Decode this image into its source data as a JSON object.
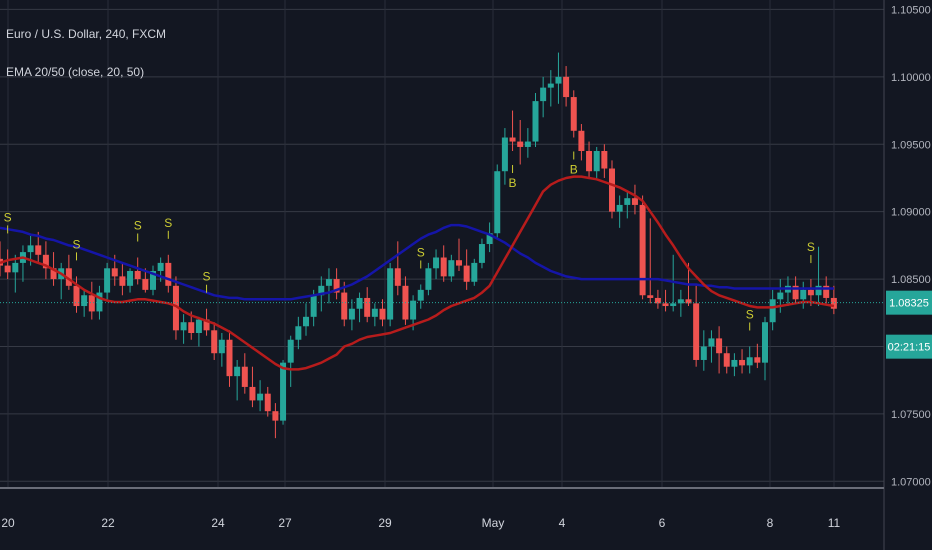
{
  "legend": {
    "symbol": "Euro / U.S. Dollar, 240, FXCM",
    "indicator": "EMA 20/50 (close, 20, 50)"
  },
  "colors": {
    "background": "#131722",
    "grid": "#363a45",
    "up": "#26a69a",
    "down": "#ef5350",
    "ema_fast": "#b71c1c",
    "ema_slow": "#1515a8",
    "signal": "#cccc33",
    "price_line": "#26a69a"
  },
  "chart_data": {
    "type": "candlestick",
    "title": "Euro / U.S. Dollar, 240, FXCM",
    "ylim": [
      1.0698,
      1.1057
    ],
    "y_ticks": [
      "1.10500",
      "1.10000",
      "1.09500",
      "1.09000",
      "1.08500",
      "1.08000",
      "1.07500",
      "1.07000"
    ],
    "x_ticks": [
      "20",
      "22",
      "24",
      "27",
      "29",
      "May",
      "4",
      "6",
      "8",
      "11"
    ],
    "current_price": "1.08325",
    "countdown": "02:21:15",
    "candles": [
      [
        1.0865,
        1.0878,
        1.0852,
        1.086
      ],
      [
        1.086,
        1.0872,
        1.085,
        1.0855
      ],
      [
        1.0855,
        1.0868,
        1.084,
        1.0862
      ],
      [
        1.0862,
        1.0875,
        1.0848,
        1.087
      ],
      [
        1.087,
        1.0882,
        1.086,
        1.0875
      ],
      [
        1.0875,
        1.0885,
        1.0862,
        1.0868
      ],
      [
        1.0868,
        1.0878,
        1.085,
        1.0858
      ],
      [
        1.0858,
        1.087,
        1.0845,
        1.085
      ],
      [
        1.085,
        1.0862,
        1.0835,
        1.0858
      ],
      [
        1.0858,
        1.0868,
        1.0842,
        1.0845
      ],
      [
        1.0845,
        1.0852,
        1.0825,
        1.083
      ],
      [
        1.083,
        1.0842,
        1.0822,
        1.0838
      ],
      [
        1.0838,
        1.0848,
        1.082,
        1.0826
      ],
      [
        1.0826,
        1.0845,
        1.082,
        1.084
      ],
      [
        1.084,
        1.0862,
        1.0835,
        1.0858
      ],
      [
        1.0858,
        1.0868,
        1.0845,
        1.0852
      ],
      [
        1.0852,
        1.0862,
        1.0838,
        1.0845
      ],
      [
        1.0845,
        1.0858,
        1.084,
        1.0856
      ],
      [
        1.0856,
        1.0866,
        1.0846,
        1.085
      ],
      [
        1.085,
        1.0858,
        1.084,
        1.0842
      ],
      [
        1.0842,
        1.086,
        1.0838,
        1.0856
      ],
      [
        1.0856,
        1.0866,
        1.0848,
        1.0862
      ],
      [
        1.0862,
        1.0868,
        1.084,
        1.0845
      ],
      [
        1.0845,
        1.0852,
        1.0805,
        1.0812
      ],
      [
        1.0812,
        1.0824,
        1.0802,
        1.0818
      ],
      [
        1.0818,
        1.0826,
        1.0805,
        1.081
      ],
      [
        1.081,
        1.0822,
        1.08,
        1.082
      ],
      [
        1.082,
        1.0828,
        1.0808,
        1.0812
      ],
      [
        1.0812,
        1.0818,
        1.079,
        1.0795
      ],
      [
        1.0795,
        1.081,
        1.0785,
        1.0805
      ],
      [
        1.0805,
        1.0812,
        1.077,
        1.0778
      ],
      [
        1.0778,
        1.079,
        1.076,
        1.0785
      ],
      [
        1.0785,
        1.0795,
        1.0765,
        1.077
      ],
      [
        1.077,
        1.0785,
        1.0755,
        1.076
      ],
      [
        1.076,
        1.0775,
        1.0752,
        1.0765
      ],
      [
        1.0765,
        1.077,
        1.0748,
        1.0752
      ],
      [
        1.0752,
        1.0758,
        1.0732,
        1.0745
      ],
      [
        1.0745,
        1.079,
        1.0742,
        1.0788
      ],
      [
        1.0788,
        1.0808,
        1.077,
        1.0805
      ],
      [
        1.0805,
        1.0822,
        1.0798,
        1.0815
      ],
      [
        1.0815,
        1.0832,
        1.0808,
        1.0822
      ],
      [
        1.0822,
        1.0842,
        1.0815,
        1.0838
      ],
      [
        1.0838,
        1.0852,
        1.0826,
        1.0845
      ],
      [
        1.0845,
        1.0858,
        1.0832,
        1.085
      ],
      [
        1.085,
        1.0858,
        1.0835,
        1.084
      ],
      [
        1.084,
        1.0848,
        1.0815,
        1.082
      ],
      [
        1.082,
        1.0835,
        1.0812,
        1.0828
      ],
      [
        1.0828,
        1.084,
        1.0818,
        1.0836
      ],
      [
        1.0836,
        1.0844,
        1.0818,
        1.0822
      ],
      [
        1.0822,
        1.0832,
        1.0815,
        1.0828
      ],
      [
        1.0828,
        1.0835,
        1.0815,
        1.082
      ],
      [
        1.082,
        1.0862,
        1.0815,
        1.0858
      ],
      [
        1.0858,
        1.0878,
        1.0838,
        1.0845
      ],
      [
        1.0845,
        1.0852,
        1.0816,
        1.082
      ],
      [
        1.082,
        1.0838,
        1.0812,
        1.0834
      ],
      [
        1.0834,
        1.0846,
        1.0828,
        1.0842
      ],
      [
        1.0842,
        1.0862,
        1.0838,
        1.0858
      ],
      [
        1.0858,
        1.0872,
        1.085,
        1.0866
      ],
      [
        1.0866,
        1.0875,
        1.0848,
        1.0852
      ],
      [
        1.0852,
        1.0868,
        1.0848,
        1.0864
      ],
      [
        1.0864,
        1.088,
        1.0856,
        1.086
      ],
      [
        1.086,
        1.0872,
        1.0842,
        1.0848
      ],
      [
        1.0848,
        1.0865,
        1.0845,
        1.0862
      ],
      [
        1.0862,
        1.088,
        1.0858,
        1.0876
      ],
      [
        1.0876,
        1.0892,
        1.087,
        1.0884
      ],
      [
        1.0884,
        1.0935,
        1.088,
        1.093
      ],
      [
        1.093,
        1.0962,
        1.092,
        1.0955
      ],
      [
        1.0955,
        1.0975,
        1.0945,
        1.0952
      ],
      [
        1.0952,
        1.0968,
        1.0935,
        1.0948
      ],
      [
        1.0948,
        1.0962,
        1.094,
        1.0952
      ],
      [
        1.0952,
        1.0988,
        1.0948,
        1.0982
      ],
      [
        1.0982,
        1.1,
        1.097,
        1.0992
      ],
      [
        1.0992,
        1.1005,
        1.0978,
        1.0995
      ],
      [
        1.0995,
        1.1018,
        1.098,
        1.1
      ],
      [
        1.1,
        1.1008,
        1.0978,
        1.0985
      ],
      [
        1.0985,
        1.099,
        1.0955,
        1.096
      ],
      [
        1.096,
        1.0965,
        1.0938,
        1.0945
      ],
      [
        1.0945,
        1.0952,
        1.0925,
        1.093
      ],
      [
        1.093,
        1.0948,
        1.0925,
        1.0945
      ],
      [
        1.0945,
        1.095,
        1.0925,
        1.0932
      ],
      [
        1.0932,
        1.0938,
        1.0895,
        1.09
      ],
      [
        1.09,
        1.0912,
        1.0888,
        1.0905
      ],
      [
        1.0905,
        1.0915,
        1.0895,
        1.091
      ],
      [
        1.091,
        1.092,
        1.0898,
        1.0905
      ],
      [
        1.0905,
        1.0912,
        1.0835,
        1.0838
      ],
      [
        1.0838,
        1.0895,
        1.0832,
        1.0836
      ],
      [
        1.0836,
        1.0842,
        1.0828,
        1.0832
      ],
      [
        1.0832,
        1.0842,
        1.0826,
        1.083
      ],
      [
        1.083,
        1.0868,
        1.0826,
        1.0832
      ],
      [
        1.0832,
        1.0842,
        1.0822,
        1.0835
      ],
      [
        1.0835,
        1.0862,
        1.083,
        1.0832
      ],
      [
        1.0832,
        1.0845,
        1.0785,
        1.079
      ],
      [
        1.079,
        1.0812,
        1.0782,
        1.08
      ],
      [
        1.08,
        1.0812,
        1.0788,
        1.0806
      ],
      [
        1.0806,
        1.0815,
        1.078,
        1.0795
      ],
      [
        1.0795,
        1.08,
        1.078,
        1.0785
      ],
      [
        1.0785,
        1.0795,
        1.0778,
        1.079
      ],
      [
        1.079,
        1.0798,
        1.078,
        1.0786
      ],
      [
        1.0786,
        1.08,
        1.078,
        1.0792
      ],
      [
        1.0792,
        1.0802,
        1.0784,
        1.0788
      ],
      [
        1.0788,
        1.0822,
        1.0775,
        1.0818
      ],
      [
        1.0818,
        1.0842,
        1.0812,
        1.0835
      ],
      [
        1.0835,
        1.085,
        1.0825,
        1.084
      ],
      [
        1.084,
        1.0852,
        1.083,
        1.0845
      ],
      [
        1.0845,
        1.0852,
        1.0832,
        1.0835
      ],
      [
        1.0835,
        1.0848,
        1.0828,
        1.0842
      ],
      [
        1.0842,
        1.085,
        1.083,
        1.0838
      ],
      [
        1.0838,
        1.0874,
        1.083,
        1.0845
      ],
      [
        1.0845,
        1.0852,
        1.0832,
        1.0836
      ],
      [
        1.0836,
        1.0845,
        1.0824,
        1.0828
      ]
    ],
    "ema20": [
      1.0862,
      1.0864,
      1.0865,
      1.0866,
      1.0864,
      1.0862,
      1.086,
      1.0857,
      1.0854,
      1.085,
      1.0846,
      1.0842,
      1.0839,
      1.0836,
      1.0834,
      1.0833,
      1.0833,
      1.0834,
      1.0835,
      1.0835,
      1.0834,
      1.0833,
      1.0832,
      1.083,
      1.0826,
      1.0823,
      1.0821,
      1.0819,
      1.0817,
      1.0814,
      1.0811,
      1.0807,
      1.0803,
      1.0799,
      1.0795,
      1.0791,
      1.0787,
      1.0784,
      1.0783,
      1.0783,
      1.0784,
      1.0786,
      1.0788,
      1.0791,
      1.0794,
      1.08,
      1.0802,
      1.0805,
      1.0807,
      1.0808,
      1.0809,
      1.081,
      1.0812,
      1.0814,
      1.0816,
      1.0818,
      1.082,
      1.0823,
      1.0827,
      1.083,
      1.0832,
      1.0834,
      1.0836,
      1.084,
      1.0845,
      1.0855,
      1.0865,
      1.0875,
      1.0885,
      1.0895,
      1.0905,
      1.0915,
      1.092,
      1.0923,
      1.0925,
      1.0926,
      1.0926,
      1.0925,
      1.0924,
      1.0922,
      1.092,
      1.0918,
      1.0915,
      1.0912,
      1.0908,
      1.09,
      1.0892,
      1.0883,
      1.0875,
      1.0866,
      1.0858,
      1.0852,
      1.0846,
      1.0841,
      1.0838,
      1.0836,
      1.0834,
      1.0832,
      1.083,
      1.0829,
      1.0829,
      1.0829,
      1.083,
      1.0831,
      1.0832,
      1.0833,
      1.0833,
      1.0832,
      1.0831,
      1.083
    ],
    "ema50": [
      1.0888,
      1.0887,
      1.0886,
      1.0885,
      1.0883,
      1.0882,
      1.088,
      1.0879,
      1.0877,
      1.0875,
      1.0874,
      1.0872,
      1.087,
      1.0868,
      1.0866,
      1.0864,
      1.0862,
      1.086,
      1.0858,
      1.0856,
      1.0854,
      1.0852,
      1.085,
      1.0848,
      1.0846,
      1.0844,
      1.0842,
      1.084,
      1.0838,
      1.0837,
      1.0836,
      1.0836,
      1.0835,
      1.0835,
      1.0835,
      1.0835,
      1.0835,
      1.0835,
      1.0835,
      1.0836,
      1.0837,
      1.0838,
      1.0839,
      1.084,
      1.0842,
      1.0844,
      1.0846,
      1.0849,
      1.0852,
      1.0856,
      1.086,
      1.0864,
      1.0868,
      1.0872,
      1.0876,
      1.088,
      1.0883,
      1.0885,
      1.0888,
      1.089,
      1.089,
      1.0889,
      1.0887,
      1.0885,
      1.0883,
      1.088,
      1.0877,
      1.0873,
      1.0869,
      1.0866,
      1.0862,
      1.0859,
      1.0856,
      1.0854,
      1.0852,
      1.0851,
      1.085,
      1.085,
      1.085,
      1.085,
      1.085,
      1.085,
      1.085,
      1.085,
      1.085,
      1.085,
      1.085,
      1.0849,
      1.0848,
      1.0847,
      1.0846,
      1.0846,
      1.0845,
      1.0845,
      1.0844,
      1.0844,
      1.0843,
      1.0843,
      1.0843,
      1.0843,
      1.0843,
      1.0843,
      1.0843,
      1.0843,
      1.0843,
      1.0843,
      1.0843,
      1.0843,
      1.0843,
      1.0843
    ],
    "signals": [
      {
        "label": "S",
        "index": 1
      },
      {
        "label": "S",
        "index": 10
      },
      {
        "label": "S",
        "index": 18
      },
      {
        "label": "S",
        "index": 22
      },
      {
        "label": "S",
        "index": 27
      },
      {
        "label": "S",
        "index": 55
      },
      {
        "label": "B",
        "index": 67
      },
      {
        "label": "B",
        "index": 75
      },
      {
        "label": "S",
        "index": 98
      },
      {
        "label": "S",
        "index": 106
      }
    ]
  }
}
